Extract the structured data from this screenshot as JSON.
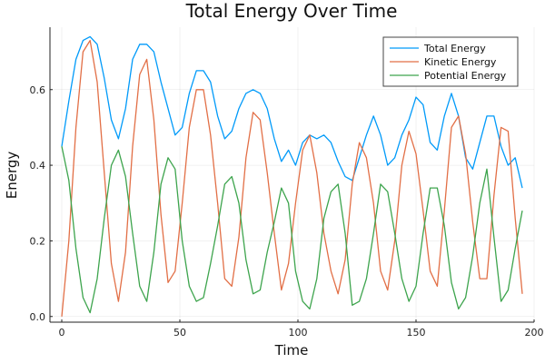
{
  "chart_data": {
    "type": "line",
    "title": "Total Energy Over Time",
    "xlabel": "Time",
    "ylabel": "Energy",
    "xlim": [
      -5,
      200
    ],
    "ylim": [
      -0.015,
      0.765
    ],
    "xticks": [
      0,
      50,
      100,
      150,
      200
    ],
    "yticks": [
      0.0,
      0.2,
      0.4,
      0.6
    ],
    "ytick_labels": [
      "0.0",
      "0.2",
      "0.4",
      "0.6"
    ],
    "grid": true,
    "legend_position": "top-right",
    "series": [
      {
        "name": "Total Energy",
        "color": "#009af9",
        "x": [
          0,
          3,
          6,
          9,
          12,
          15,
          18,
          21,
          24,
          27,
          30,
          33,
          36,
          39,
          42,
          45,
          48,
          51,
          54,
          57,
          60,
          63,
          66,
          69,
          72,
          75,
          78,
          81,
          84,
          87,
          90,
          93,
          96,
          99,
          102,
          105,
          108,
          111,
          114,
          117,
          120,
          123,
          126,
          129,
          132,
          135,
          138,
          141,
          144,
          147,
          150,
          153,
          156,
          159,
          162,
          165,
          168,
          171,
          174,
          177,
          180,
          183,
          186,
          189,
          192,
          195
        ],
        "values": [
          0.45,
          0.57,
          0.68,
          0.73,
          0.74,
          0.72,
          0.63,
          0.52,
          0.47,
          0.55,
          0.68,
          0.72,
          0.72,
          0.7,
          0.62,
          0.55,
          0.48,
          0.5,
          0.59,
          0.65,
          0.65,
          0.62,
          0.53,
          0.47,
          0.49,
          0.55,
          0.59,
          0.6,
          0.59,
          0.55,
          0.47,
          0.41,
          0.44,
          0.4,
          0.46,
          0.48,
          0.47,
          0.48,
          0.46,
          0.41,
          0.37,
          0.36,
          0.42,
          0.48,
          0.53,
          0.48,
          0.4,
          0.42,
          0.48,
          0.52,
          0.58,
          0.56,
          0.46,
          0.44,
          0.53,
          0.59,
          0.53,
          0.42,
          0.39,
          0.46,
          0.53,
          0.53,
          0.45,
          0.4,
          0.42,
          0.34
        ]
      },
      {
        "name": "Kinetic Energy",
        "color": "#e26f46",
        "x": [
          0,
          3,
          6,
          9,
          12,
          15,
          18,
          21,
          24,
          27,
          30,
          33,
          36,
          39,
          42,
          45,
          48,
          51,
          54,
          57,
          60,
          63,
          66,
          69,
          72,
          75,
          78,
          81,
          84,
          87,
          90,
          93,
          96,
          99,
          102,
          105,
          108,
          111,
          114,
          117,
          120,
          123,
          126,
          129,
          132,
          135,
          138,
          141,
          144,
          147,
          150,
          153,
          156,
          159,
          162,
          165,
          168,
          171,
          174,
          177,
          180,
          183,
          186,
          189,
          192,
          195
        ],
        "values": [
          0.0,
          0.2,
          0.5,
          0.7,
          0.73,
          0.62,
          0.38,
          0.14,
          0.04,
          0.17,
          0.45,
          0.64,
          0.68,
          0.52,
          0.27,
          0.09,
          0.12,
          0.3,
          0.5,
          0.6,
          0.6,
          0.48,
          0.3,
          0.1,
          0.08,
          0.21,
          0.42,
          0.54,
          0.52,
          0.38,
          0.22,
          0.07,
          0.14,
          0.3,
          0.44,
          0.48,
          0.38,
          0.22,
          0.12,
          0.06,
          0.15,
          0.35,
          0.46,
          0.42,
          0.3,
          0.12,
          0.07,
          0.2,
          0.4,
          0.49,
          0.43,
          0.28,
          0.12,
          0.08,
          0.28,
          0.5,
          0.53,
          0.43,
          0.25,
          0.1,
          0.1,
          0.32,
          0.5,
          0.49,
          0.26,
          0.06
        ]
      },
      {
        "name": "Potential Energy",
        "color": "#3da44d",
        "x": [
          0,
          3,
          6,
          9,
          12,
          15,
          18,
          21,
          24,
          27,
          30,
          33,
          36,
          39,
          42,
          45,
          48,
          51,
          54,
          57,
          60,
          63,
          66,
          69,
          72,
          75,
          78,
          81,
          84,
          87,
          90,
          93,
          96,
          99,
          102,
          105,
          108,
          111,
          114,
          117,
          120,
          123,
          126,
          129,
          132,
          135,
          138,
          141,
          144,
          147,
          150,
          153,
          156,
          159,
          162,
          165,
          168,
          171,
          174,
          177,
          180,
          183,
          186,
          189,
          192,
          195
        ],
        "values": [
          0.45,
          0.36,
          0.18,
          0.05,
          0.01,
          0.1,
          0.26,
          0.4,
          0.44,
          0.37,
          0.22,
          0.08,
          0.04,
          0.17,
          0.35,
          0.42,
          0.39,
          0.2,
          0.08,
          0.04,
          0.05,
          0.14,
          0.24,
          0.35,
          0.37,
          0.3,
          0.15,
          0.06,
          0.07,
          0.17,
          0.25,
          0.34,
          0.3,
          0.12,
          0.04,
          0.02,
          0.1,
          0.26,
          0.33,
          0.35,
          0.22,
          0.03,
          0.04,
          0.1,
          0.22,
          0.35,
          0.33,
          0.22,
          0.1,
          0.04,
          0.08,
          0.22,
          0.34,
          0.34,
          0.24,
          0.09,
          0.02,
          0.05,
          0.16,
          0.3,
          0.39,
          0.21,
          0.04,
          0.07,
          0.18,
          0.28
        ]
      }
    ]
  }
}
